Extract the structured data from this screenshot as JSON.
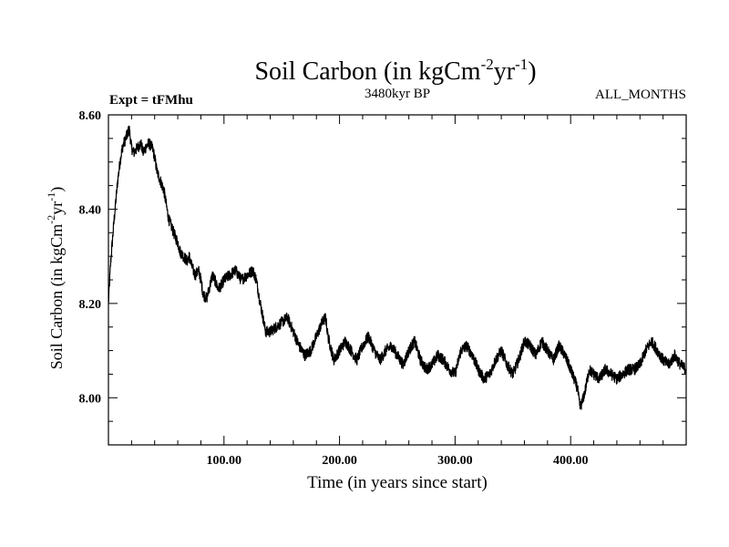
{
  "chart_data": {
    "type": "line",
    "title_main": "Soil Carbon (in kgCm",
    "title_sup1": "-2",
    "title_mid": "yr",
    "title_sup2": "-1",
    "title_end": ")",
    "subtitle_left": "Expt = tFMhu",
    "subtitle_center": "3480kyr BP",
    "subtitle_right": "ALL_MONTHS",
    "xlabel": "Time (in years since start)",
    "ylabel_main": "Soil Carbon (in kgCm",
    "ylabel_sup1": "-2",
    "ylabel_mid": "yr",
    "ylabel_sup2": "-1",
    "ylabel_end": ")",
    "xlim": [
      0,
      500
    ],
    "ylim": [
      7.9,
      8.6
    ],
    "x_ticks": [
      100,
      200,
      300,
      400
    ],
    "x_tick_labels": [
      "100.00",
      "200.00",
      "300.00",
      "400.00"
    ],
    "y_ticks": [
      8.0,
      8.2,
      8.4,
      8.6
    ],
    "y_tick_labels": [
      "8.00",
      "8.20",
      "8.40",
      "8.60"
    ],
    "series": [
      {
        "name": "Soil Carbon",
        "color": "#000000",
        "noise_band": 0.012,
        "x": [
          0,
          2,
          5,
          8,
          10,
          12,
          15,
          18,
          20,
          22,
          25,
          28,
          30,
          32,
          35,
          38,
          40,
          42,
          45,
          48,
          50,
          52,
          55,
          58,
          60,
          62,
          65,
          68,
          70,
          72,
          75,
          78,
          80,
          82,
          85,
          88,
          90,
          92,
          95,
          98,
          100,
          105,
          110,
          115,
          120,
          125,
          128,
          130,
          133,
          136,
          140,
          145,
          150,
          155,
          160,
          165,
          170,
          175,
          180,
          185,
          188,
          190,
          195,
          200,
          205,
          210,
          215,
          220,
          225,
          230,
          235,
          240,
          245,
          250,
          255,
          260,
          265,
          270,
          275,
          280,
          285,
          290,
          295,
          300,
          305,
          310,
          315,
          320,
          325,
          330,
          335,
          340,
          345,
          350,
          355,
          360,
          365,
          370,
          375,
          380,
          385,
          390,
          395,
          400,
          403,
          406,
          408,
          410,
          413,
          416,
          420,
          425,
          430,
          435,
          440,
          445,
          450,
          455,
          460,
          465,
          470,
          475,
          480,
          485,
          490,
          495,
          500
        ],
        "values": [
          8.2,
          8.29,
          8.38,
          8.46,
          8.5,
          8.53,
          8.55,
          8.57,
          8.53,
          8.52,
          8.53,
          8.54,
          8.52,
          8.53,
          8.54,
          8.53,
          8.51,
          8.48,
          8.46,
          8.44,
          8.41,
          8.38,
          8.36,
          8.34,
          8.33,
          8.31,
          8.3,
          8.29,
          8.3,
          8.28,
          8.26,
          8.27,
          8.25,
          8.22,
          8.21,
          8.24,
          8.26,
          8.25,
          8.23,
          8.24,
          8.25,
          8.26,
          8.27,
          8.25,
          8.26,
          8.27,
          8.25,
          8.22,
          8.18,
          8.14,
          8.14,
          8.15,
          8.16,
          8.17,
          8.14,
          8.11,
          8.09,
          8.1,
          8.13,
          8.16,
          8.17,
          8.13,
          8.08,
          8.1,
          8.12,
          8.1,
          8.08,
          8.11,
          8.13,
          8.1,
          8.08,
          8.1,
          8.11,
          8.09,
          8.07,
          8.1,
          8.12,
          8.08,
          8.06,
          8.07,
          8.09,
          8.08,
          8.06,
          8.05,
          8.1,
          8.11,
          8.09,
          8.06,
          8.04,
          8.05,
          8.08,
          8.1,
          8.07,
          8.05,
          8.08,
          8.12,
          8.11,
          8.09,
          8.12,
          8.1,
          8.08,
          8.11,
          8.09,
          8.06,
          8.04,
          8.02,
          7.98,
          7.99,
          8.02,
          8.06,
          8.05,
          8.04,
          8.06,
          8.05,
          8.04,
          8.05,
          8.06,
          8.06,
          8.07,
          8.1,
          8.12,
          8.1,
          8.08,
          8.07,
          8.09,
          8.07,
          8.06
        ]
      }
    ]
  }
}
